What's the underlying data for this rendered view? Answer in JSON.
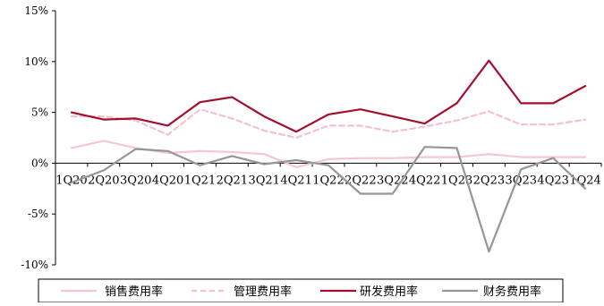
{
  "chart_data": {
    "type": "line",
    "categories": [
      "1Q20",
      "2Q20",
      "3Q20",
      "4Q20",
      "1Q21",
      "2Q21",
      "3Q21",
      "4Q21",
      "1Q22",
      "2Q22",
      "3Q22",
      "4Q22",
      "1Q23",
      "2Q23",
      "3Q23",
      "4Q23",
      "1Q24"
    ],
    "ylim": [
      -10,
      15
    ],
    "yticks": [
      -10,
      -5,
      0,
      5,
      10,
      15
    ],
    "ytick_labels": [
      "-10%",
      "-5%",
      "0%",
      "5%",
      "10%",
      "15%"
    ],
    "grid": false,
    "legend_position": "bottom",
    "series": [
      {
        "name": "销售费用率",
        "color": "#f4c7d1",
        "dash": "solid",
        "values": [
          1.5,
          2.2,
          1.5,
          1.0,
          1.2,
          1.1,
          0.9,
          -0.4,
          0.4,
          0.5,
          0.5,
          0.6,
          0.6,
          0.9,
          0.6,
          0.6,
          0.6
        ]
      },
      {
        "name": "管理费用率",
        "color": "#f2c2cf",
        "dash": "dashed",
        "values": [
          4.6,
          4.6,
          4.2,
          2.8,
          5.3,
          4.4,
          3.2,
          2.5,
          3.7,
          3.7,
          3.1,
          3.6,
          4.2,
          5.1,
          3.8,
          3.8,
          4.3
        ]
      },
      {
        "name": "研发费用率",
        "color": "#a50f2d",
        "dash": "solid",
        "values": [
          5.0,
          4.3,
          4.4,
          3.7,
          6.0,
          6.5,
          4.6,
          3.1,
          4.8,
          5.3,
          4.6,
          3.9,
          5.9,
          10.1,
          5.9,
          5.9,
          7.6
        ]
      },
      {
        "name": "财务费用率",
        "color": "#969696",
        "dash": "solid",
        "values": [
          -1.9,
          -0.7,
          1.4,
          1.2,
          -0.2,
          0.7,
          -0.1,
          0.3,
          -0.2,
          -3.0,
          -3.0,
          1.6,
          1.5,
          -8.7,
          -0.6,
          0.5,
          -2.5
        ]
      }
    ]
  }
}
